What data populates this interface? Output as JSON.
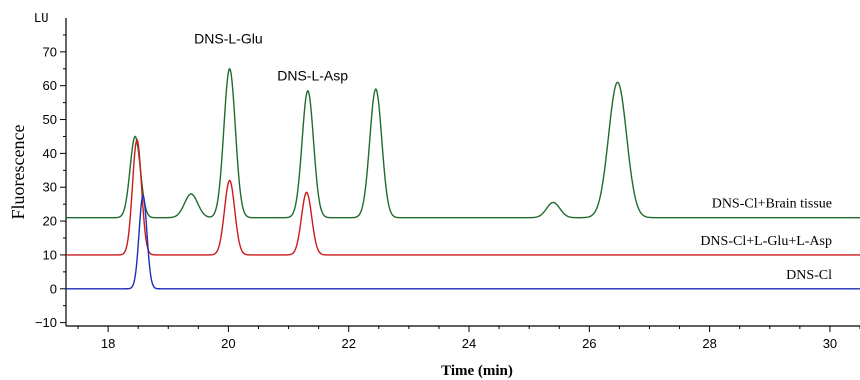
{
  "chart_data": {
    "type": "line",
    "xlabel": "Time (min)",
    "ylabel": "Fluorescence",
    "y_unit": "LU",
    "xlim": [
      17.3,
      30.5
    ],
    "ylim": [
      -11,
      80
    ],
    "x_ticks": [
      18,
      20,
      22,
      24,
      26,
      28,
      30
    ],
    "y_ticks": [
      -10,
      0,
      10,
      20,
      30,
      40,
      50,
      60,
      70
    ],
    "grid": false,
    "series": [
      {
        "name": "DNS-Cl+Brain tissue",
        "color": "#1f6b2e",
        "baseline": 21,
        "peaks": [
          {
            "t": 18.45,
            "h": 45,
            "w": 0.085
          },
          {
            "t": 19.38,
            "h": 28,
            "w": 0.11
          },
          {
            "t": 20.02,
            "h": 65,
            "w": 0.095
          },
          {
            "t": 21.32,
            "h": 58.5,
            "w": 0.095
          },
          {
            "t": 22.45,
            "h": 59,
            "w": 0.1
          },
          {
            "t": 25.4,
            "h": 25.5,
            "w": 0.11
          },
          {
            "t": 26.47,
            "h": 61,
            "w": 0.15
          }
        ]
      },
      {
        "name": "DNS-Cl+L-Glu+L-Asp",
        "color": "#cc1a1a",
        "baseline": 10,
        "peaks": [
          {
            "t": 18.48,
            "h": 44,
            "w": 0.075
          },
          {
            "t": 20.02,
            "h": 32,
            "w": 0.085
          },
          {
            "t": 21.3,
            "h": 28.5,
            "w": 0.085
          }
        ]
      },
      {
        "name": "DNS-Cl",
        "color": "#1a2fb8",
        "baseline": 0,
        "peaks": [
          {
            "t": 18.58,
            "h": 27.5,
            "w": 0.065
          }
        ]
      }
    ],
    "annotations": [
      {
        "text": "DNS-L-Glu",
        "x": 20.0,
        "y": 72.5
      },
      {
        "text": "DNS-L-Asp",
        "x": 21.4,
        "y": 61.5
      }
    ]
  }
}
